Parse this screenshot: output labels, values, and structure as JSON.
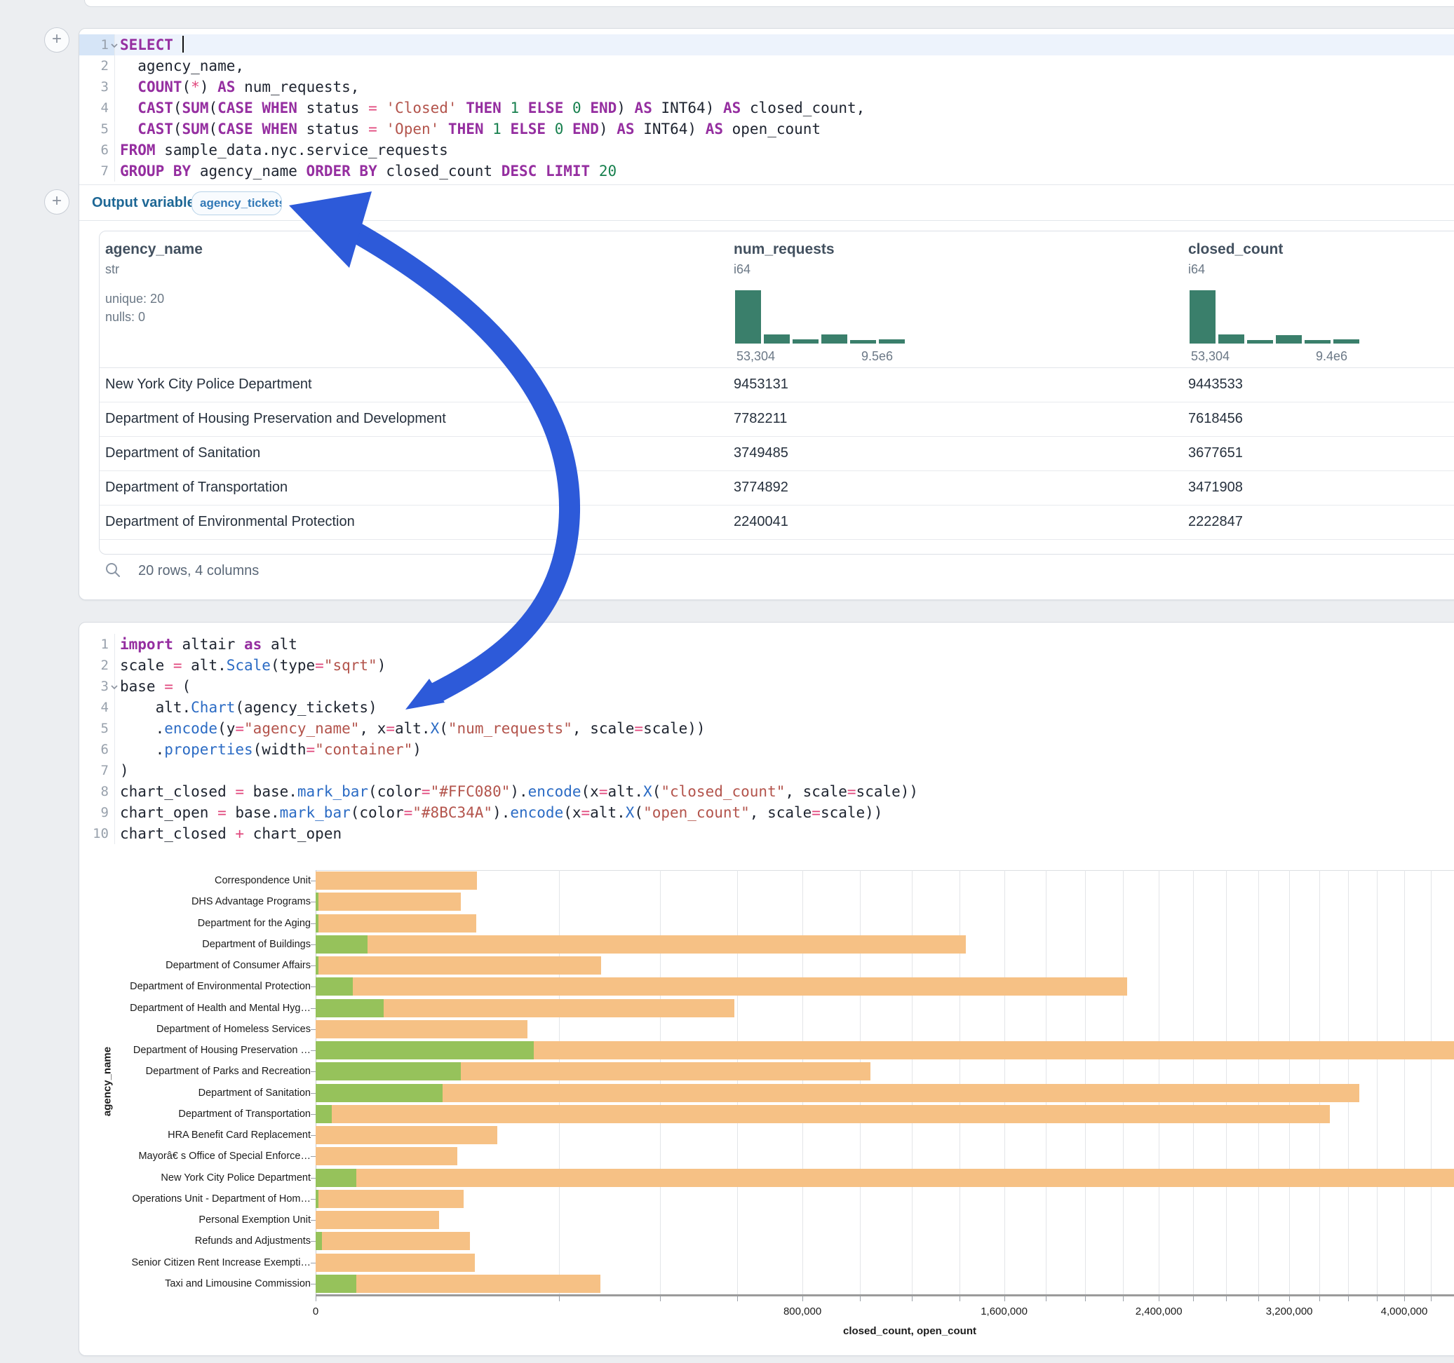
{
  "colors": {
    "arrow_annotation": "#2D5AD9",
    "bar_closed": "#FFC080",
    "bar_open": "#8BC34A",
    "histogram": "#3A7F6B"
  },
  "sql_cell": {
    "output_label": "Output variable:",
    "output_variable": "agency_tickets",
    "code_lines": [
      [
        [
          "kw",
          "SELECT "
        ]
      ],
      [
        [
          "pl",
          "  agency_name,"
        ]
      ],
      [
        [
          "pl",
          "  "
        ],
        [
          "kw",
          "COUNT"
        ],
        [
          "pl",
          "("
        ],
        [
          "op",
          "*"
        ],
        [
          "pl",
          ") "
        ],
        [
          "kw",
          "AS"
        ],
        [
          "pl",
          " num_requests,"
        ]
      ],
      [
        [
          "pl",
          "  "
        ],
        [
          "kw",
          "CAST"
        ],
        [
          "pl",
          "("
        ],
        [
          "kw",
          "SUM"
        ],
        [
          "pl",
          "("
        ],
        [
          "kw",
          "CASE"
        ],
        [
          "pl",
          " "
        ],
        [
          "kw",
          "WHEN"
        ],
        [
          "pl",
          " status "
        ],
        [
          "op",
          "="
        ],
        [
          "pl",
          " "
        ],
        [
          "st",
          "'Closed'"
        ],
        [
          "pl",
          " "
        ],
        [
          "kw",
          "THEN"
        ],
        [
          "pl",
          " "
        ],
        [
          "nu",
          "1"
        ],
        [
          "pl",
          " "
        ],
        [
          "kw",
          "ELSE"
        ],
        [
          "pl",
          " "
        ],
        [
          "nu",
          "0"
        ],
        [
          "pl",
          " "
        ],
        [
          "kw",
          "END"
        ],
        [
          "pl",
          ") "
        ],
        [
          "kw",
          "AS"
        ],
        [
          "pl",
          " INT64) "
        ],
        [
          "kw",
          "AS"
        ],
        [
          "pl",
          " closed_count,"
        ]
      ],
      [
        [
          "pl",
          "  "
        ],
        [
          "kw",
          "CAST"
        ],
        [
          "pl",
          "("
        ],
        [
          "kw",
          "SUM"
        ],
        [
          "pl",
          "("
        ],
        [
          "kw",
          "CASE"
        ],
        [
          "pl",
          " "
        ],
        [
          "kw",
          "WHEN"
        ],
        [
          "pl",
          " status "
        ],
        [
          "op",
          "="
        ],
        [
          "pl",
          " "
        ],
        [
          "st",
          "'Open'"
        ],
        [
          "pl",
          " "
        ],
        [
          "kw",
          "THEN"
        ],
        [
          "pl",
          " "
        ],
        [
          "nu",
          "1"
        ],
        [
          "pl",
          " "
        ],
        [
          "kw",
          "ELSE"
        ],
        [
          "pl",
          " "
        ],
        [
          "nu",
          "0"
        ],
        [
          "pl",
          " "
        ],
        [
          "kw",
          "END"
        ],
        [
          "pl",
          ") "
        ],
        [
          "kw",
          "AS"
        ],
        [
          "pl",
          " INT64) "
        ],
        [
          "kw",
          "AS"
        ],
        [
          "pl",
          " open_count"
        ]
      ],
      [
        [
          "kw",
          "FROM"
        ],
        [
          "pl",
          " sample_data.nyc.service_requests"
        ]
      ],
      [
        [
          "kw",
          "GROUP"
        ],
        [
          "pl",
          " "
        ],
        [
          "kw",
          "BY"
        ],
        [
          "pl",
          " agency_name "
        ],
        [
          "kw",
          "ORDER"
        ],
        [
          "pl",
          " "
        ],
        [
          "kw",
          "BY"
        ],
        [
          "pl",
          " closed_count "
        ],
        [
          "kw",
          "DESC"
        ],
        [
          "pl",
          " "
        ],
        [
          "kw",
          "LIMIT"
        ],
        [
          "pl",
          " "
        ],
        [
          "nu",
          "20"
        ]
      ]
    ],
    "results": {
      "columns": [
        {
          "name": "agency_name",
          "type": "str",
          "stats": [
            "unique: 20",
            "nulls: 0"
          ]
        },
        {
          "name": "num_requests",
          "type": "i64",
          "hist": [
            100,
            17,
            8,
            17,
            7,
            8
          ],
          "hist_min_label": "53,304",
          "hist_max_label": "9.5e6"
        },
        {
          "name": "closed_count",
          "type": "i64",
          "hist": [
            100,
            17,
            7,
            16,
            7,
            8
          ],
          "hist_min_label": "53,304",
          "hist_max_label": "9.4e6"
        }
      ],
      "rows": [
        [
          "New York City Police Department",
          "9453131",
          "9443533"
        ],
        [
          "Department of Housing Preservation and Development",
          "7782211",
          "7618456"
        ],
        [
          "Department of Sanitation",
          "3749485",
          "3677651"
        ],
        [
          "Department of Transportation",
          "3774892",
          "3471908"
        ],
        [
          "Department of Environmental Protection",
          "2240041",
          "2222847"
        ]
      ],
      "footer": "20 rows, 4 columns"
    }
  },
  "python_cell": {
    "code_lines": [
      [
        [
          "kw",
          "import"
        ],
        [
          "pl",
          " altair "
        ],
        [
          "kw",
          "as"
        ],
        [
          "pl",
          " alt"
        ]
      ],
      [
        [
          "pl",
          "scale "
        ],
        [
          "op",
          "="
        ],
        [
          "pl",
          " alt."
        ],
        [
          "fn",
          "Scale"
        ],
        [
          "pl",
          "(type"
        ],
        [
          "op",
          "="
        ],
        [
          "st",
          "\"sqrt\""
        ],
        [
          "pl",
          ")"
        ]
      ],
      [
        [
          "pl",
          "base "
        ],
        [
          "op",
          "="
        ],
        [
          "pl",
          " ("
        ]
      ],
      [
        [
          "pl",
          "    alt."
        ],
        [
          "fn",
          "Chart"
        ],
        [
          "pl",
          "(agency_tickets)"
        ]
      ],
      [
        [
          "pl",
          "    ."
        ],
        [
          "fn",
          "encode"
        ],
        [
          "pl",
          "(y"
        ],
        [
          "op",
          "="
        ],
        [
          "st",
          "\"agency_name\""
        ],
        [
          "pl",
          ", x"
        ],
        [
          "op",
          "="
        ],
        [
          "pl",
          "alt."
        ],
        [
          "fn",
          "X"
        ],
        [
          "pl",
          "("
        ],
        [
          "st",
          "\"num_requests\""
        ],
        [
          "pl",
          ", scale"
        ],
        [
          "op",
          "="
        ],
        [
          "pl",
          "scale))"
        ]
      ],
      [
        [
          "pl",
          "    ."
        ],
        [
          "fn",
          "properties"
        ],
        [
          "pl",
          "(width"
        ],
        [
          "op",
          "="
        ],
        [
          "st",
          "\"container\""
        ],
        [
          "pl",
          ")"
        ]
      ],
      [
        [
          "pl",
          ")"
        ]
      ],
      [
        [
          "pl",
          "chart_closed "
        ],
        [
          "op",
          "="
        ],
        [
          "pl",
          " base."
        ],
        [
          "fn",
          "mark_bar"
        ],
        [
          "pl",
          "(color"
        ],
        [
          "op",
          "="
        ],
        [
          "st",
          "\"#FFC080\""
        ],
        [
          "pl",
          ")."
        ],
        [
          "fn",
          "encode"
        ],
        [
          "pl",
          "(x"
        ],
        [
          "op",
          "="
        ],
        [
          "pl",
          "alt."
        ],
        [
          "fn",
          "X"
        ],
        [
          "pl",
          "("
        ],
        [
          "st",
          "\"closed_count\""
        ],
        [
          "pl",
          ", scale"
        ],
        [
          "op",
          "="
        ],
        [
          "pl",
          "scale))"
        ]
      ],
      [
        [
          "pl",
          "chart_open "
        ],
        [
          "op",
          "="
        ],
        [
          "pl",
          " base."
        ],
        [
          "fn",
          "mark_bar"
        ],
        [
          "pl",
          "(color"
        ],
        [
          "op",
          "="
        ],
        [
          "st",
          "\"#8BC34A\""
        ],
        [
          "pl",
          ")."
        ],
        [
          "fn",
          "encode"
        ],
        [
          "pl",
          "(x"
        ],
        [
          "op",
          "="
        ],
        [
          "pl",
          "alt."
        ],
        [
          "fn",
          "X"
        ],
        [
          "pl",
          "("
        ],
        [
          "st",
          "\"open_count\""
        ],
        [
          "pl",
          ", scale"
        ],
        [
          "op",
          "="
        ],
        [
          "pl",
          "scale))"
        ]
      ],
      [
        [
          "pl",
          "chart_closed "
        ],
        [
          "op",
          "+"
        ],
        [
          "pl",
          " chart_open"
        ]
      ]
    ]
  },
  "chart_data": {
    "type": "bar",
    "orientation": "horizontal",
    "x_scale": "sqrt",
    "title": "",
    "xlabel": "closed_count, open_count",
    "ylabel": "agency_name",
    "grid": true,
    "x_tick_values": [
      0,
      800000,
      1600000,
      2400000,
      3200000,
      4000000
    ],
    "x_tick_labels": [
      "0",
      "800,000",
      "1,600,000",
      "2,400,000",
      "3,200,000",
      "4,000,000"
    ],
    "categories": [
      "Correspondence Unit",
      "DHS Advantage Programs",
      "Department for the Aging",
      "Department of Buildings",
      "Department of Consumer Affairs",
      "Department of Environmental Protection",
      "Department of Health and Mental Hyg…",
      "Department of Homeless Services",
      "Department of Housing Preservation …",
      "Department of Parks and Recreation",
      "Department of Sanitation",
      "Department of Transportation",
      "HRA Benefit Card Replacement",
      "Mayorâ€ s Office of Special Enforce…",
      "New York City Police Department",
      "Operations Unit - Department of Hom…",
      "Personal Exemption Unit",
      "Refunds and Adjustments",
      "Senior Citizen Rent Increase Exempti…",
      "Taxi and Limousine Commission"
    ],
    "series": [
      {
        "name": "closed_count",
        "color": "#FFC080",
        "values": [
          87900,
          71200,
          87100,
          1428000,
          275300,
          2222847,
          592300,
          151600,
          7618456,
          1039800,
          3677651,
          3471908,
          111500,
          67800,
          9443533,
          74000,
          51500,
          80400,
          85600,
          273900
        ]
      },
      {
        "name": "open_count",
        "color": "#8BC34A",
        "values": [
          0,
          30,
          30,
          9100,
          20,
          4700,
          15600,
          0,
          160700,
          71200,
          54400,
          880,
          0,
          0,
          5600,
          20,
          0,
          130,
          0,
          5600
        ]
      }
    ]
  }
}
